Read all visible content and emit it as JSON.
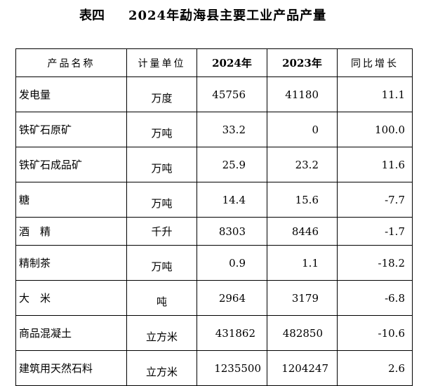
{
  "title": {
    "prefix": "表四",
    "text": "2024年勐海县主要工业产品产量"
  },
  "table": {
    "headers": {
      "product": "产品名称",
      "unit": "计量单位",
      "y2024": "2024年",
      "y2023": "2023年",
      "yoy": "同比增长"
    },
    "rows": [
      {
        "name": "发电量",
        "unit": "万度",
        "y2024": "45756",
        "y2023": "41180",
        "yoy": "11.1"
      },
      {
        "name": "铁矿石原矿",
        "unit": "万吨",
        "y2024": "33.2",
        "y2023": "0",
        "yoy": "100.0"
      },
      {
        "name": "铁矿石成品矿",
        "unit": "万吨",
        "y2024": "25.9",
        "y2023": "23.2",
        "yoy": "11.6"
      },
      {
        "name": "糖",
        "unit": "万吨",
        "y2024": "14.4",
        "y2023": "15.6",
        "yoy": "-7.7"
      },
      {
        "name": "酒　精",
        "unit": "千升",
        "y2024": "8303",
        "y2023": "8446",
        "yoy": "-1.7"
      },
      {
        "name": "精制茶",
        "unit": "万吨",
        "y2024": "0.9",
        "y2023": "1.1",
        "yoy": "-18.2"
      },
      {
        "name": "大　米",
        "unit": "吨",
        "y2024": "2964",
        "y2023": "3179",
        "yoy": "-6.8"
      },
      {
        "name": "商品混凝土",
        "unit": "立方米",
        "y2024": "431862",
        "y2023": "482850",
        "yoy": "-10.6"
      },
      {
        "name": "建筑用天然石料",
        "unit": "立方米",
        "y2024": "1235500",
        "y2023": "1204247",
        "yoy": "2.6"
      }
    ]
  }
}
